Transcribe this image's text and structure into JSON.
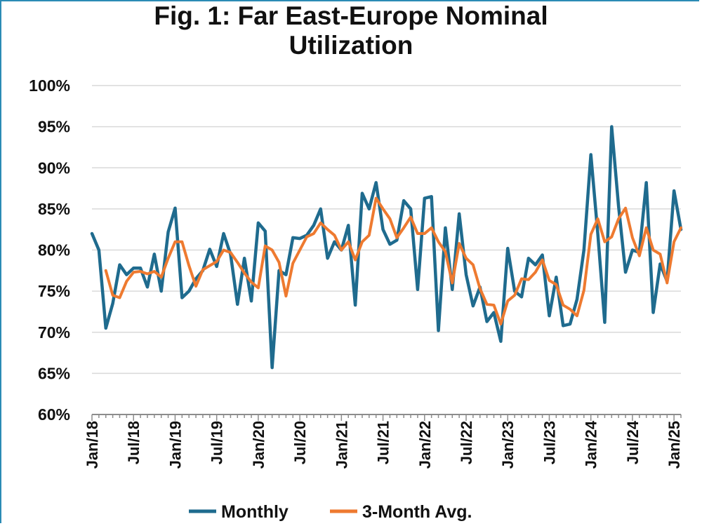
{
  "chart_data": {
    "type": "line",
    "title": "Fig. 1: Far East-Europe Nominal Utilization",
    "title_lines": [
      "Fig. 1: Far East-Europe Nominal",
      "Utilization"
    ],
    "xlabel": "",
    "ylabel": "",
    "ylim": [
      60,
      100
    ],
    "y_ticks": [
      60,
      65,
      70,
      75,
      80,
      85,
      90,
      95,
      100
    ],
    "y_tick_labels": [
      "60%",
      "65%",
      "70%",
      "75%",
      "80%",
      "85%",
      "90%",
      "95%",
      "100%"
    ],
    "x_tick_labels": [
      "Jan/18",
      "Jul/18",
      "Jan/19",
      "Jul/19",
      "Jan/20",
      "Jul/20",
      "Jan/21",
      "Jul/21",
      "Jan/22",
      "Jul/22",
      "Jan/23",
      "Jul/23",
      "Jan/24",
      "Jul/24",
      "Jan/25"
    ],
    "x_start": "Jan/18",
    "x_end": "Jan/25",
    "grid": true,
    "legend_position": "bottom",
    "colors": {
      "Monthly": "#1f6b8e",
      "3-Month Avg.": "#ee7a30",
      "grid": "#d9d9d9",
      "axis": "#8c8c8c"
    },
    "series": [
      {
        "name": "Monthly",
        "values": [
          82.0,
          80.0,
          70.5,
          73.5,
          78.2,
          77.0,
          77.8,
          77.8,
          75.5,
          79.5,
          75.0,
          82.2,
          85.1,
          74.2,
          75.0,
          76.5,
          77.5,
          80.1,
          78.0,
          82.0,
          79.5,
          73.4,
          79.0,
          73.8,
          83.3,
          82.3,
          65.7,
          77.5,
          77.0,
          81.5,
          81.4,
          81.8,
          83.0,
          85.0,
          79.0,
          81.0,
          80.0,
          83.0,
          73.3,
          86.9,
          85.0,
          88.2,
          82.5,
          80.7,
          81.2,
          86.0,
          85.0,
          75.2,
          86.3,
          86.5,
          70.2,
          82.7,
          75.2,
          84.4,
          77.0,
          73.2,
          75.5,
          71.3,
          72.4,
          68.9,
          80.2,
          75.0,
          74.3,
          79.0,
          78.2,
          79.4,
          72.0,
          76.7,
          70.8,
          71.0,
          74.0,
          80.0,
          91.6,
          82.0,
          71.2,
          95.0,
          85.3,
          77.3,
          80.0,
          79.7,
          88.2,
          72.4,
          78.3,
          76.2,
          87.2,
          82.5
        ]
      },
      {
        "name": "3-Month Avg.",
        "values": [
          null,
          null,
          77.5,
          74.5,
          74.2,
          76.2,
          77.3,
          77.4,
          77.1,
          77.4,
          76.7,
          79.0,
          81.0,
          81.0,
          78.1,
          75.6,
          77.6,
          78.1,
          78.6,
          80.0,
          79.7,
          78.5,
          77.2,
          76.1,
          75.4,
          80.5,
          80.0,
          78.5,
          74.4,
          78.4,
          80.0,
          81.6,
          82.0,
          83.3,
          82.5,
          81.8,
          80.0,
          81.0,
          78.8,
          81.0,
          81.8,
          86.3,
          85.0,
          83.8,
          81.5,
          82.7,
          84.0,
          82.0,
          82.0,
          82.7,
          81.0,
          79.8,
          76.0,
          80.8,
          79.0,
          78.2,
          75.3,
          73.4,
          73.3,
          71.0,
          73.8,
          74.5,
          76.5,
          76.4,
          77.3,
          78.8,
          76.3,
          75.8,
          73.3,
          72.8,
          72.0,
          75.1,
          81.9,
          83.8,
          81.0,
          81.6,
          83.8,
          85.1,
          81.5,
          79.3,
          82.7,
          80.0,
          79.5,
          76.0,
          81.0,
          82.7
        ]
      }
    ]
  }
}
